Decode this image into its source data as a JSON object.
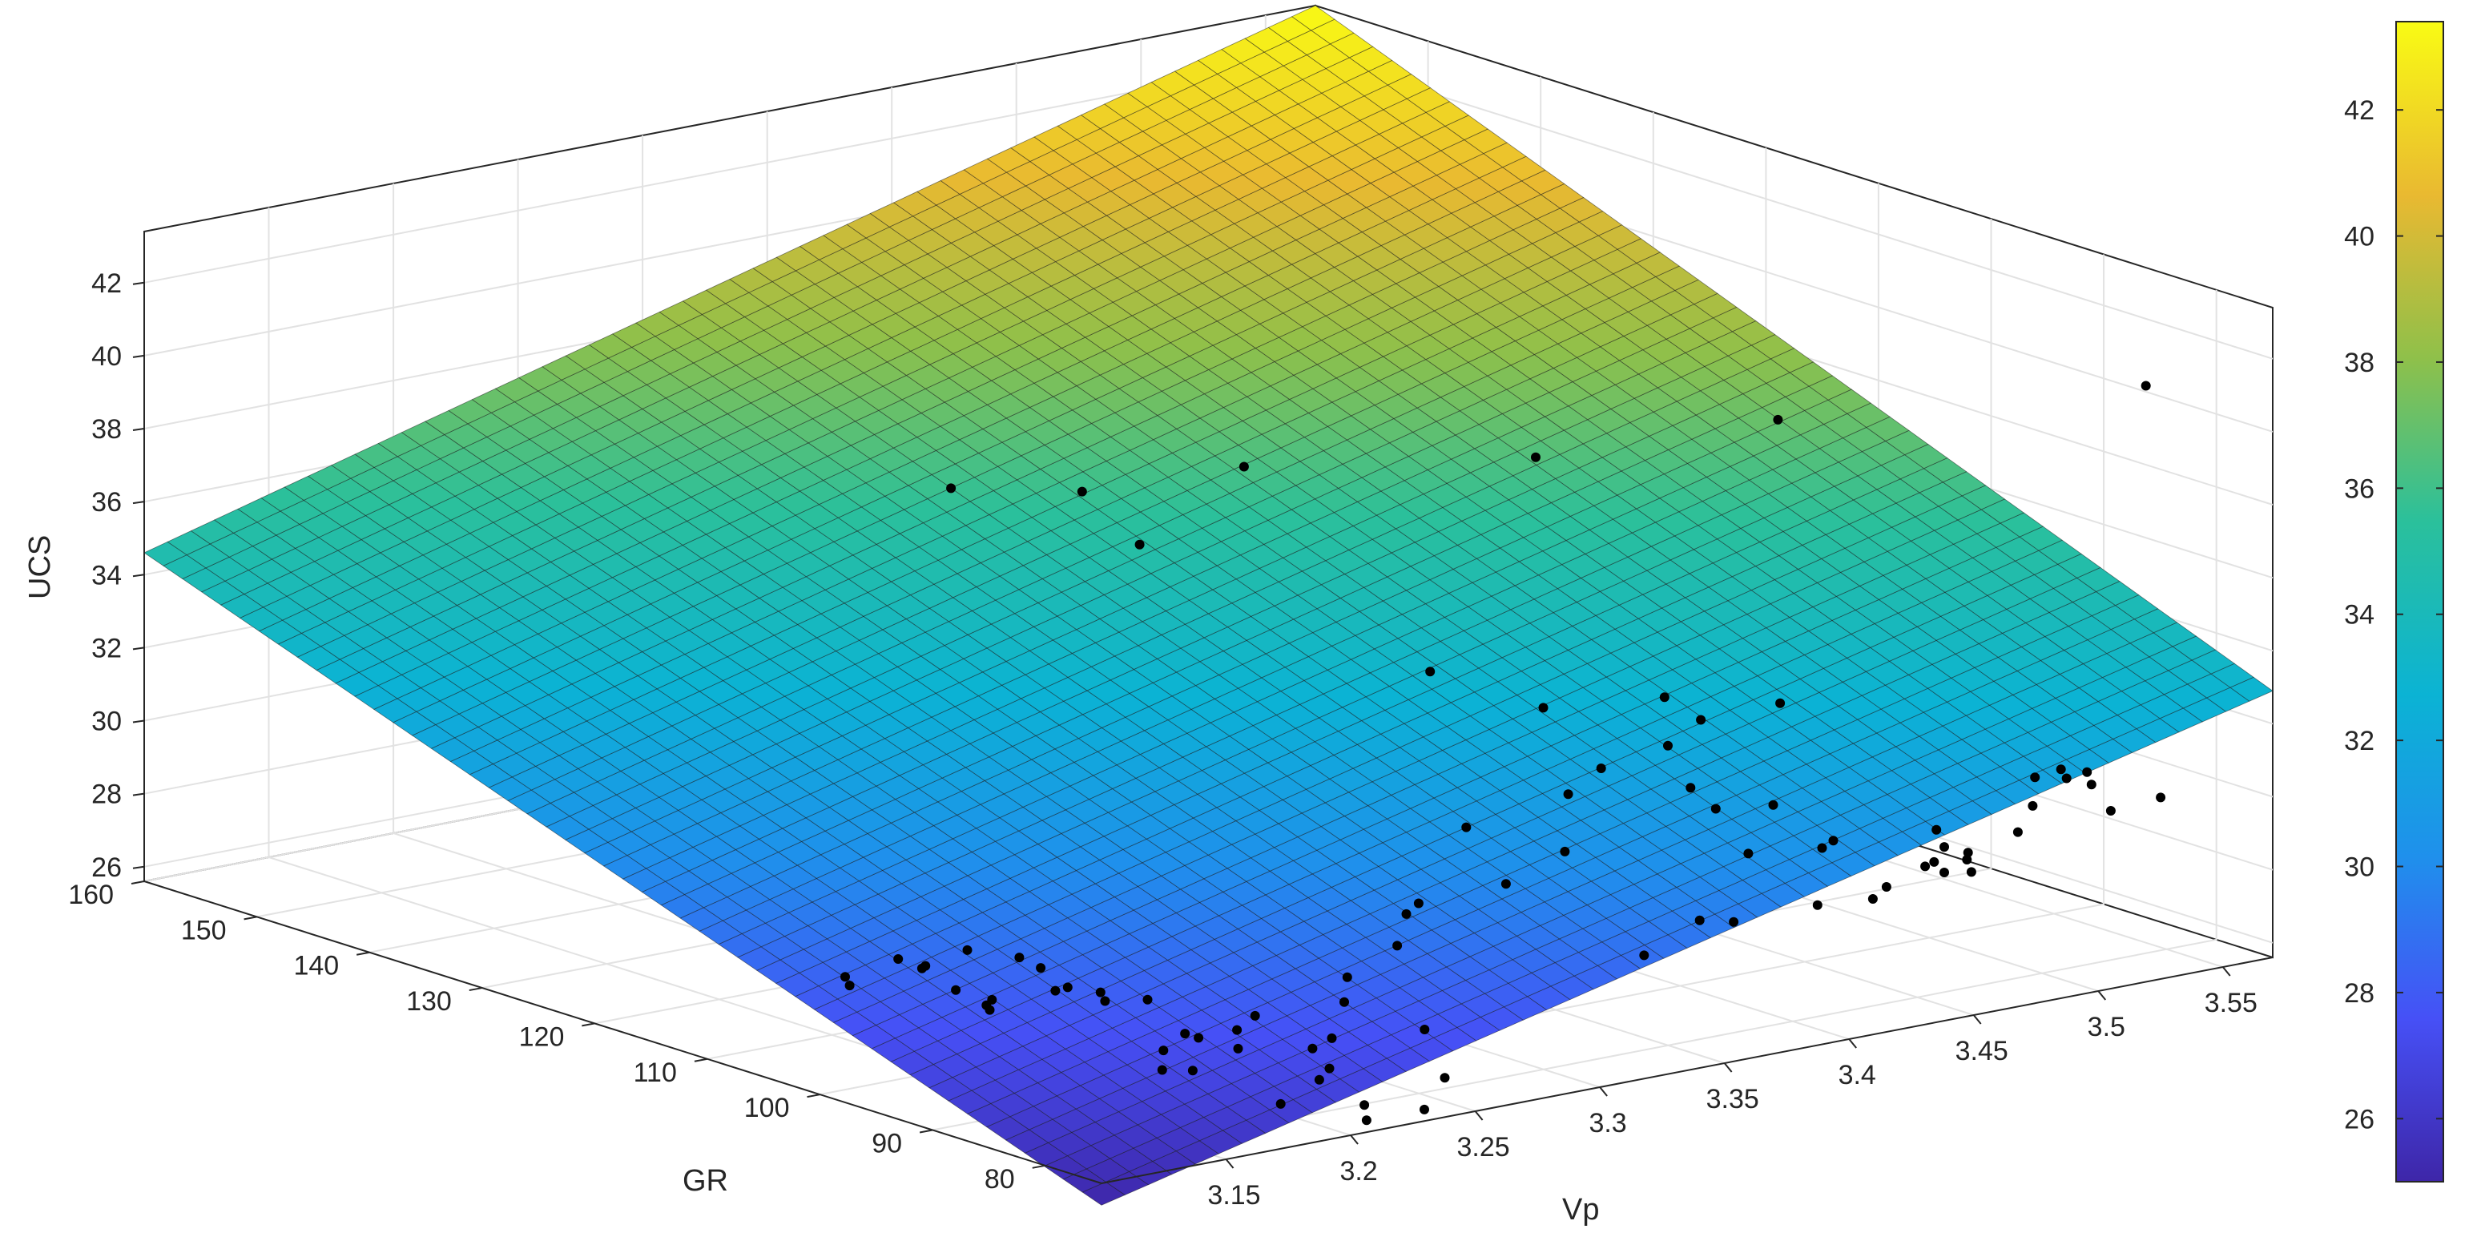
{
  "chart_data": {
    "type": "surface",
    "title": "",
    "xlabel": "Vp",
    "ylabel": "GR",
    "zlabel": "UCS",
    "xlim": [
      3.1,
      3.57
    ],
    "ylim": [
      75,
      160
    ],
    "zlim": [
      25.6,
      43.4
    ],
    "x_ticks": [
      "3.15",
      "3.2",
      "3.25",
      "3.3",
      "3.35",
      "3.4",
      "3.45",
      "3.5",
      "3.55"
    ],
    "y_ticks": [
      "80",
      "90",
      "100",
      "110",
      "120",
      "130",
      "140",
      "150",
      "160"
    ],
    "z_ticks": [
      "26",
      "28",
      "30",
      "32",
      "34",
      "36",
      "38",
      "40",
      "42"
    ],
    "grid": true,
    "colormap": "parula",
    "colorbar": {
      "range": [
        25,
        43.4
      ],
      "ticks": [
        "26",
        "28",
        "30",
        "32",
        "34",
        "36",
        "38",
        "40",
        "42"
      ]
    },
    "surface_corners": [
      {
        "x": 3.1,
        "y": 75,
        "z": 25.0
      },
      {
        "x": 3.57,
        "y": 75,
        "z": 32.9
      },
      {
        "x": 3.1,
        "y": 160,
        "z": 34.6
      },
      {
        "x": 3.57,
        "y": 160,
        "z": 43.4
      }
    ],
    "points": [
      [
        3.16,
        90.0,
        42.3
      ],
      [
        3.22,
        88.9,
        42.3
      ],
      [
        3.3,
        80.7,
        42.3
      ],
      [
        3.13,
        95.0,
        42.3
      ],
      [
        3.39,
        79.1,
        42.3
      ],
      [
        3.52,
        75.2,
        41.9
      ],
      [
        3.17,
        87.1,
        41.0
      ],
      [
        3.24,
        76.8,
        37.6
      ],
      [
        3.28,
        75.6,
        36.2
      ],
      [
        3.33,
        75.9,
        35.8
      ],
      [
        3.38,
        76.7,
        34.9
      ],
      [
        3.35,
        77.1,
        34.8
      ],
      [
        3.31,
        77.1,
        34.0
      ],
      [
        3.33,
        75.6,
        34.5
      ],
      [
        3.29,
        75.6,
        33.7
      ],
      [
        3.25,
        75.8,
        33.3
      ],
      [
        3.34,
        75.8,
        33.2
      ],
      [
        3.37,
        75.1,
        32.4
      ],
      [
        3.29,
        75.9,
        32.1
      ],
      [
        3.23,
        75.6,
        31.5
      ],
      [
        3.36,
        75.1,
        31.2
      ],
      [
        3.27,
        76.7,
        31.4
      ],
      [
        3.37,
        80.2,
        31.8
      ],
      [
        3.23,
        76.7,
        31.1
      ],
      [
        3.22,
        75.3,
        30.5
      ],
      [
        3.2,
        75.3,
        29.9
      ],
      [
        3.44,
        76.1,
        30.7
      ],
      [
        3.4,
        76.4,
        30.9
      ],
      [
        3.5,
        76.0,
        31.5
      ],
      [
        3.49,
        76.1,
        31.7
      ],
      [
        3.49,
        75.6,
        31.5
      ],
      [
        3.48,
        76.2,
        31.6
      ],
      [
        3.5,
        75.6,
        31.2
      ],
      [
        3.48,
        76.4,
        30.8
      ],
      [
        3.4,
        77.4,
        30.6
      ],
      [
        3.44,
        75.4,
        30.3
      ],
      [
        3.47,
        75.5,
        30.3
      ],
      [
        3.53,
        76.1,
        30.4
      ],
      [
        3.51,
        76.1,
        30.3
      ],
      [
        3.45,
        75.5,
        30.0
      ],
      [
        3.45,
        75.6,
        29.8
      ],
      [
        3.44,
        76.3,
        29.8
      ],
      [
        3.44,
        75.4,
        29.6
      ],
      [
        3.45,
        75.2,
        29.5
      ],
      [
        3.41,
        75.1,
        29.3
      ],
      [
        3.42,
        76.1,
        29.4
      ],
      [
        3.44,
        77.1,
        29.6
      ],
      [
        3.35,
        77.2,
        29.3
      ],
      [
        3.36,
        76.4,
        29.2
      ],
      [
        3.32,
        75.5,
        28.9
      ],
      [
        3.4,
        77.8,
        29.0
      ],
      [
        3.22,
        80.0,
        28.5
      ],
      [
        3.17,
        86.4,
        28.6
      ],
      [
        3.14,
        101.9,
        28.6
      ],
      [
        3.15,
        102.0,
        28.2
      ],
      [
        3.15,
        101.7,
        28.3
      ],
      [
        3.17,
        102.4,
        28.4
      ],
      [
        3.18,
        100.0,
        28.3
      ],
      [
        3.18,
        98.1,
        28.2
      ],
      [
        3.13,
        104.0,
        27.8
      ],
      [
        3.15,
        99.0,
        27.9
      ],
      [
        3.18,
        95.7,
        27.9
      ],
      [
        3.16,
        98.0,
        27.6
      ],
      [
        3.13,
        104.4,
        28.0
      ],
      [
        3.18,
        96.8,
        27.7
      ],
      [
        3.19,
        95.0,
        27.7
      ],
      [
        3.19,
        94.6,
        27.5
      ],
      [
        3.16,
        98.5,
        27.4
      ],
      [
        3.16,
        98.2,
        27.3
      ],
      [
        3.21,
        85.7,
        27.7
      ],
      [
        3.19,
        87.5,
        27.3
      ],
      [
        3.18,
        87.2,
        27.0
      ],
      [
        3.17,
        85.1,
        26.8
      ],
      [
        3.2,
        85.0,
        27.0
      ],
      [
        3.22,
        81.1,
        27.4
      ],
      [
        3.21,
        80.6,
        27.3
      ],
      [
        3.18,
        84.6,
        26.7
      ],
      [
        3.21,
        79.1,
        26.9
      ],
      [
        3.21,
        80.0,
        26.5
      ],
      [
        3.24,
        75.5,
        26.6
      ],
      [
        3.21,
        76.0,
        26.2
      ],
      [
        3.19,
        79.0,
        26.2
      ],
      [
        3.21,
        75.8,
        25.8
      ],
      [
        3.23,
        75.1,
        25.9
      ],
      [
        3.25,
        79.5,
        27.4
      ],
      [
        3.19,
        86.3,
        27.3
      ],
      [
        3.2,
        85.1,
        27.5
      ]
    ]
  }
}
